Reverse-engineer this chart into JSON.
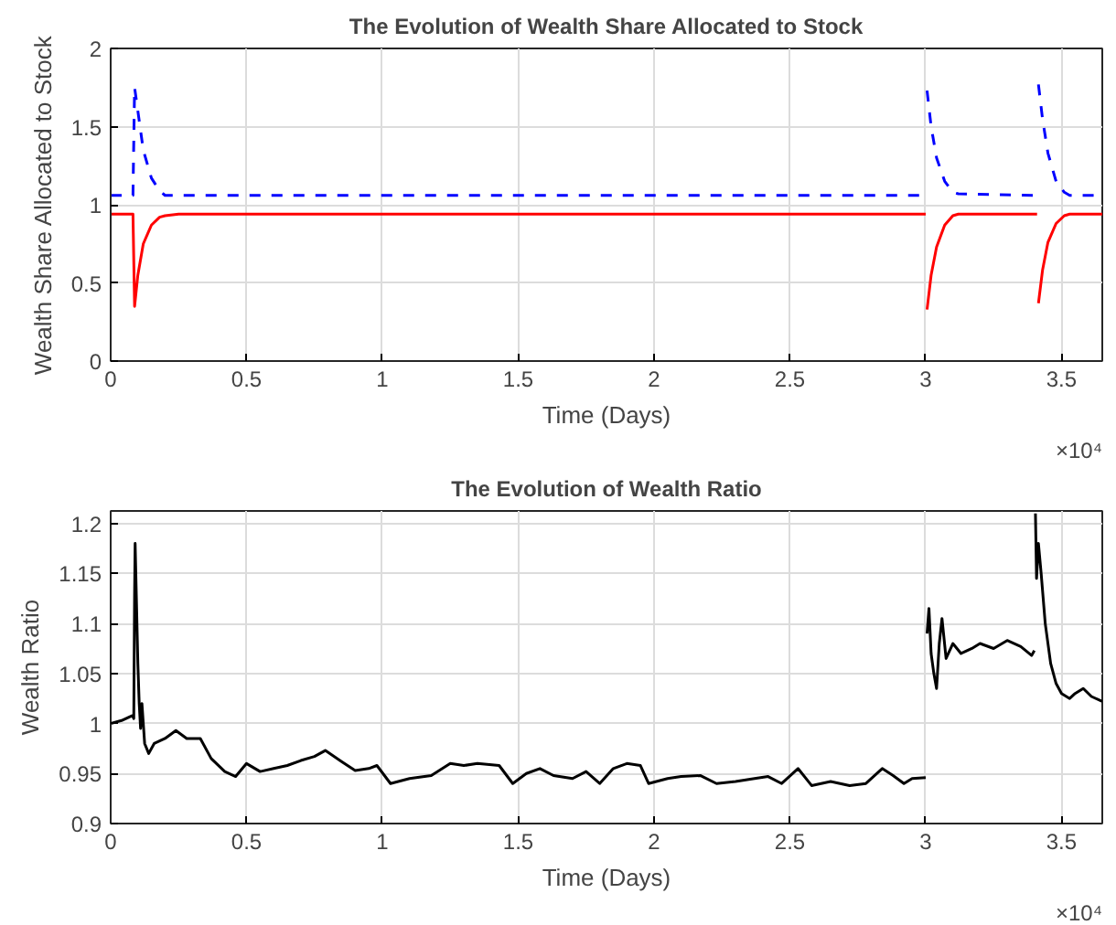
{
  "chart_data": [
    {
      "type": "line",
      "title": "The Evolution of Wealth Share Allocated to Stock",
      "xlabel": "Time (Days)",
      "ylabel": "Wealth Share Allocated to Stock",
      "xlim": [
        0,
        3.65
      ],
      "ylim": [
        0,
        2
      ],
      "xticks": [
        0,
        0.5,
        1,
        1.5,
        2,
        2.5,
        3,
        3.5
      ],
      "yticks": [
        0,
        0.5,
        1,
        1.5,
        2
      ],
      "grid": true,
      "annotations": [
        "×10⁴"
      ],
      "series": [
        {
          "color": "#0000ff",
          "line_style": "dashed",
          "x": [
            0,
            0.04,
            0.082,
            0.088,
            0.1,
            0.12,
            0.15,
            0.18,
            0.2,
            0.25,
            3.0,
            3.0005,
            3.005,
            3.02,
            3.04,
            3.07,
            3.1,
            3.12,
            3.41,
            3.4105,
            3.415,
            3.43,
            3.45,
            3.48,
            3.51,
            3.53,
            3.65
          ],
          "values": [
            1.06,
            1.06,
            1.06,
            1.75,
            1.6,
            1.35,
            1.17,
            1.09,
            1.06,
            1.06,
            1.06,
            null,
            1.73,
            1.5,
            1.3,
            1.15,
            1.08,
            1.07,
            1.06,
            null,
            1.77,
            1.55,
            1.33,
            1.15,
            1.08,
            1.06,
            1.06
          ]
        },
        {
          "color": "#ff0000",
          "line_style": "solid",
          "x": [
            0,
            0.04,
            0.082,
            0.088,
            0.1,
            0.12,
            0.15,
            0.18,
            0.2,
            0.25,
            3.0,
            3.0005,
            3.005,
            3.02,
            3.04,
            3.07,
            3.1,
            3.12,
            3.41,
            3.4105,
            3.415,
            3.43,
            3.45,
            3.48,
            3.51,
            3.53,
            3.65
          ],
          "values": [
            0.94,
            0.94,
            0.94,
            0.35,
            0.55,
            0.75,
            0.87,
            0.92,
            0.93,
            0.94,
            0.94,
            null,
            0.33,
            0.55,
            0.73,
            0.87,
            0.93,
            0.94,
            0.94,
            null,
            0.37,
            0.58,
            0.76,
            0.88,
            0.93,
            0.94,
            0.94
          ]
        }
      ]
    },
    {
      "type": "line",
      "title": "The Evolution of Wealth Ratio",
      "xlabel": "Time (Days)",
      "ylabel": "Wealth Ratio",
      "xlim": [
        0,
        3.65
      ],
      "ylim": [
        0.9,
        1.2125
      ],
      "xticks": [
        0,
        0.5,
        1,
        1.5,
        2,
        2.5,
        3,
        3.5
      ],
      "yticks": [
        0.9,
        0.95,
        1,
        1.05,
        1.1,
        1.15,
        1.2
      ],
      "grid": true,
      "annotations": [
        "×10⁴"
      ],
      "series": [
        {
          "color": "#000000",
          "line_style": "solid",
          "x": [
            0,
            0.04,
            0.08,
            0.085,
            0.088,
            0.09,
            0.095,
            0.1,
            0.105,
            0.11,
            0.115,
            0.125,
            0.14,
            0.16,
            0.2,
            0.24,
            0.28,
            0.33,
            0.37,
            0.42,
            0.46,
            0.5,
            0.55,
            0.6,
            0.65,
            0.7,
            0.75,
            0.79,
            0.85,
            0.9,
            0.95,
            0.98,
            1.03,
            1.1,
            1.18,
            1.25,
            1.3,
            1.35,
            1.43,
            1.48,
            1.53,
            1.58,
            1.63,
            1.7,
            1.75,
            1.8,
            1.85,
            1.9,
            1.95,
            1.98,
            2.05,
            2.1,
            2.17,
            2.23,
            2.3,
            2.37,
            2.42,
            2.47,
            2.53,
            2.58,
            2.65,
            2.72,
            2.78,
            2.84,
            2.88,
            2.92,
            2.95,
            3.0,
            3.002,
            3.005,
            3.012,
            3.02,
            3.03,
            3.04,
            3.05,
            3.06,
            3.075,
            3.1,
            3.13,
            3.17,
            3.2,
            3.25,
            3.3,
            3.35,
            3.39,
            3.4,
            3.402,
            3.404,
            3.408,
            3.415,
            3.425,
            3.44,
            3.46,
            3.48,
            3.5,
            3.53,
            3.55,
            3.58,
            3.61,
            3.65
          ],
          "values": [
            1.0,
            1.003,
            1.008,
            1.005,
            1.13,
            1.18,
            1.12,
            1.06,
            1.02,
            0.995,
            1.02,
            0.98,
            0.97,
            0.98,
            0.985,
            0.993,
            0.985,
            0.985,
            0.965,
            0.952,
            0.947,
            0.96,
            0.952,
            0.955,
            0.958,
            0.963,
            0.967,
            0.973,
            0.962,
            0.953,
            0.955,
            0.958,
            0.94,
            0.945,
            0.948,
            0.96,
            0.958,
            0.96,
            0.958,
            0.94,
            0.95,
            0.955,
            0.948,
            0.945,
            0.952,
            0.94,
            0.955,
            0.96,
            0.958,
            0.94,
            0.945,
            0.947,
            0.948,
            0.94,
            0.942,
            0.945,
            0.947,
            0.94,
            0.955,
            0.938,
            0.942,
            0.938,
            0.94,
            0.955,
            0.948,
            0.94,
            0.945,
            0.946,
            null,
            1.09,
            1.115,
            1.07,
            1.05,
            1.035,
            1.08,
            1.105,
            1.065,
            1.08,
            1.07,
            1.075,
            1.08,
            1.075,
            1.083,
            1.077,
            1.068,
            1.073,
            null,
            1.21,
            1.145,
            1.18,
            1.15,
            1.1,
            1.06,
            1.04,
            1.03,
            1.025,
            1.03,
            1.035,
            1.027,
            1.022
          ]
        }
      ]
    }
  ]
}
